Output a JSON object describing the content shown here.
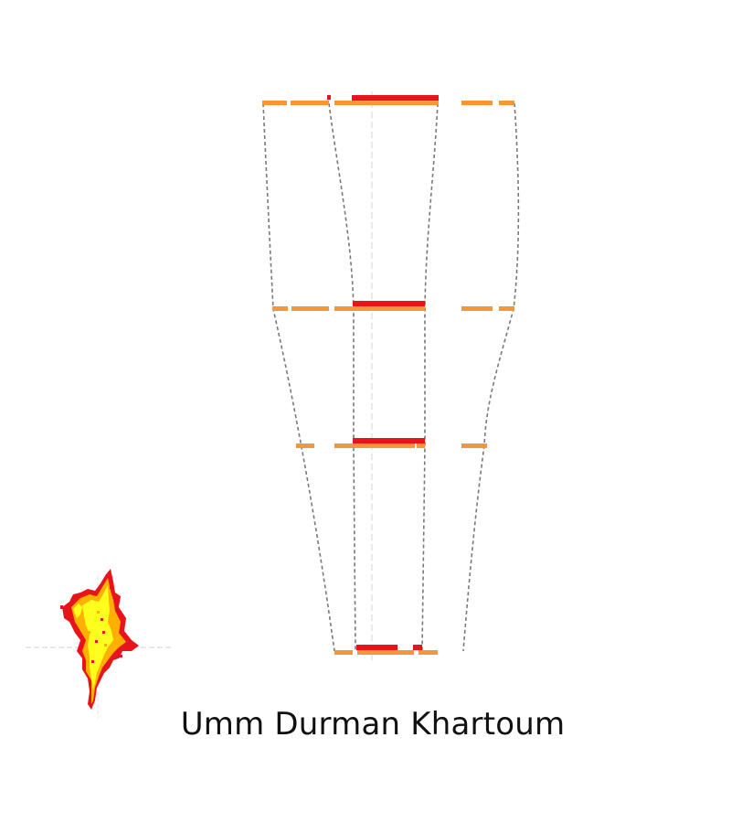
{
  "title": "Umm Durman Khartoum",
  "colors": {
    "background": "#ffffff",
    "band_segment": "#f5963a",
    "built_area_bar": "#e8141c",
    "outline_dash": "#7a7a7a",
    "center_axis": "#cfcfcf",
    "thumb_core": "#ffff1e",
    "thumb_mid": "#ffb000",
    "thumb_edge": "#e8141c"
  },
  "icons": {
    "thumbnail": "city-footprint-map-icon"
  }
}
